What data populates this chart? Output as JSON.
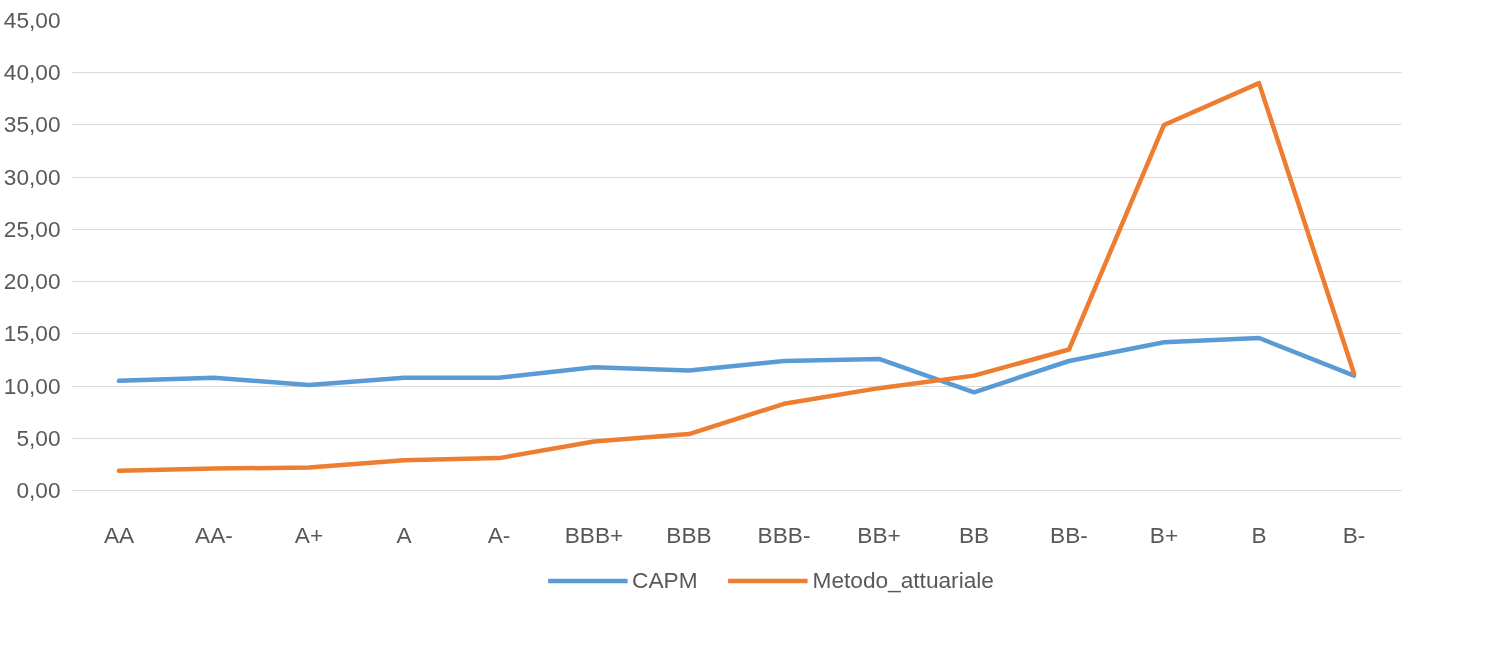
{
  "chart_data": {
    "type": "line",
    "categories": [
      "AA",
      "AA-",
      "A+",
      "A",
      "A-",
      "BBB+",
      "BBB",
      "BBB-",
      "BB+",
      "BB",
      "BB-",
      "B+",
      "B",
      "B-"
    ],
    "series": [
      {
        "name": "CAPM",
        "color": "#5b9bd5",
        "values": [
          10.5,
          10.8,
          10.1,
          10.8,
          10.8,
          11.8,
          11.5,
          12.4,
          12.6,
          9.4,
          12.4,
          14.2,
          14.6,
          11.0
        ]
      },
      {
        "name": "Metodo_attuariale",
        "color": "#ed7d31",
        "values": [
          1.9,
          2.1,
          2.2,
          2.9,
          3.1,
          4.7,
          5.4,
          8.3,
          9.8,
          11.0,
          13.5,
          35.0,
          39.0,
          11.2
        ]
      }
    ],
    "ylim": [
      0,
      45
    ],
    "yticks": [
      {
        "value": 0,
        "label": "0,00"
      },
      {
        "value": 5,
        "label": "5,00"
      },
      {
        "value": 10,
        "label": "10,00"
      },
      {
        "value": 15,
        "label": "15,00"
      },
      {
        "value": 20,
        "label": "20,00"
      },
      {
        "value": 25,
        "label": "25,00"
      },
      {
        "value": 30,
        "label": "30,00"
      },
      {
        "value": 35,
        "label": "35,00"
      },
      {
        "value": 40,
        "label": "40,00"
      },
      {
        "value": 45,
        "label": "45,00"
      }
    ],
    "grid": "y",
    "legend": "bottom",
    "marker": "none",
    "line_style": "solid"
  }
}
